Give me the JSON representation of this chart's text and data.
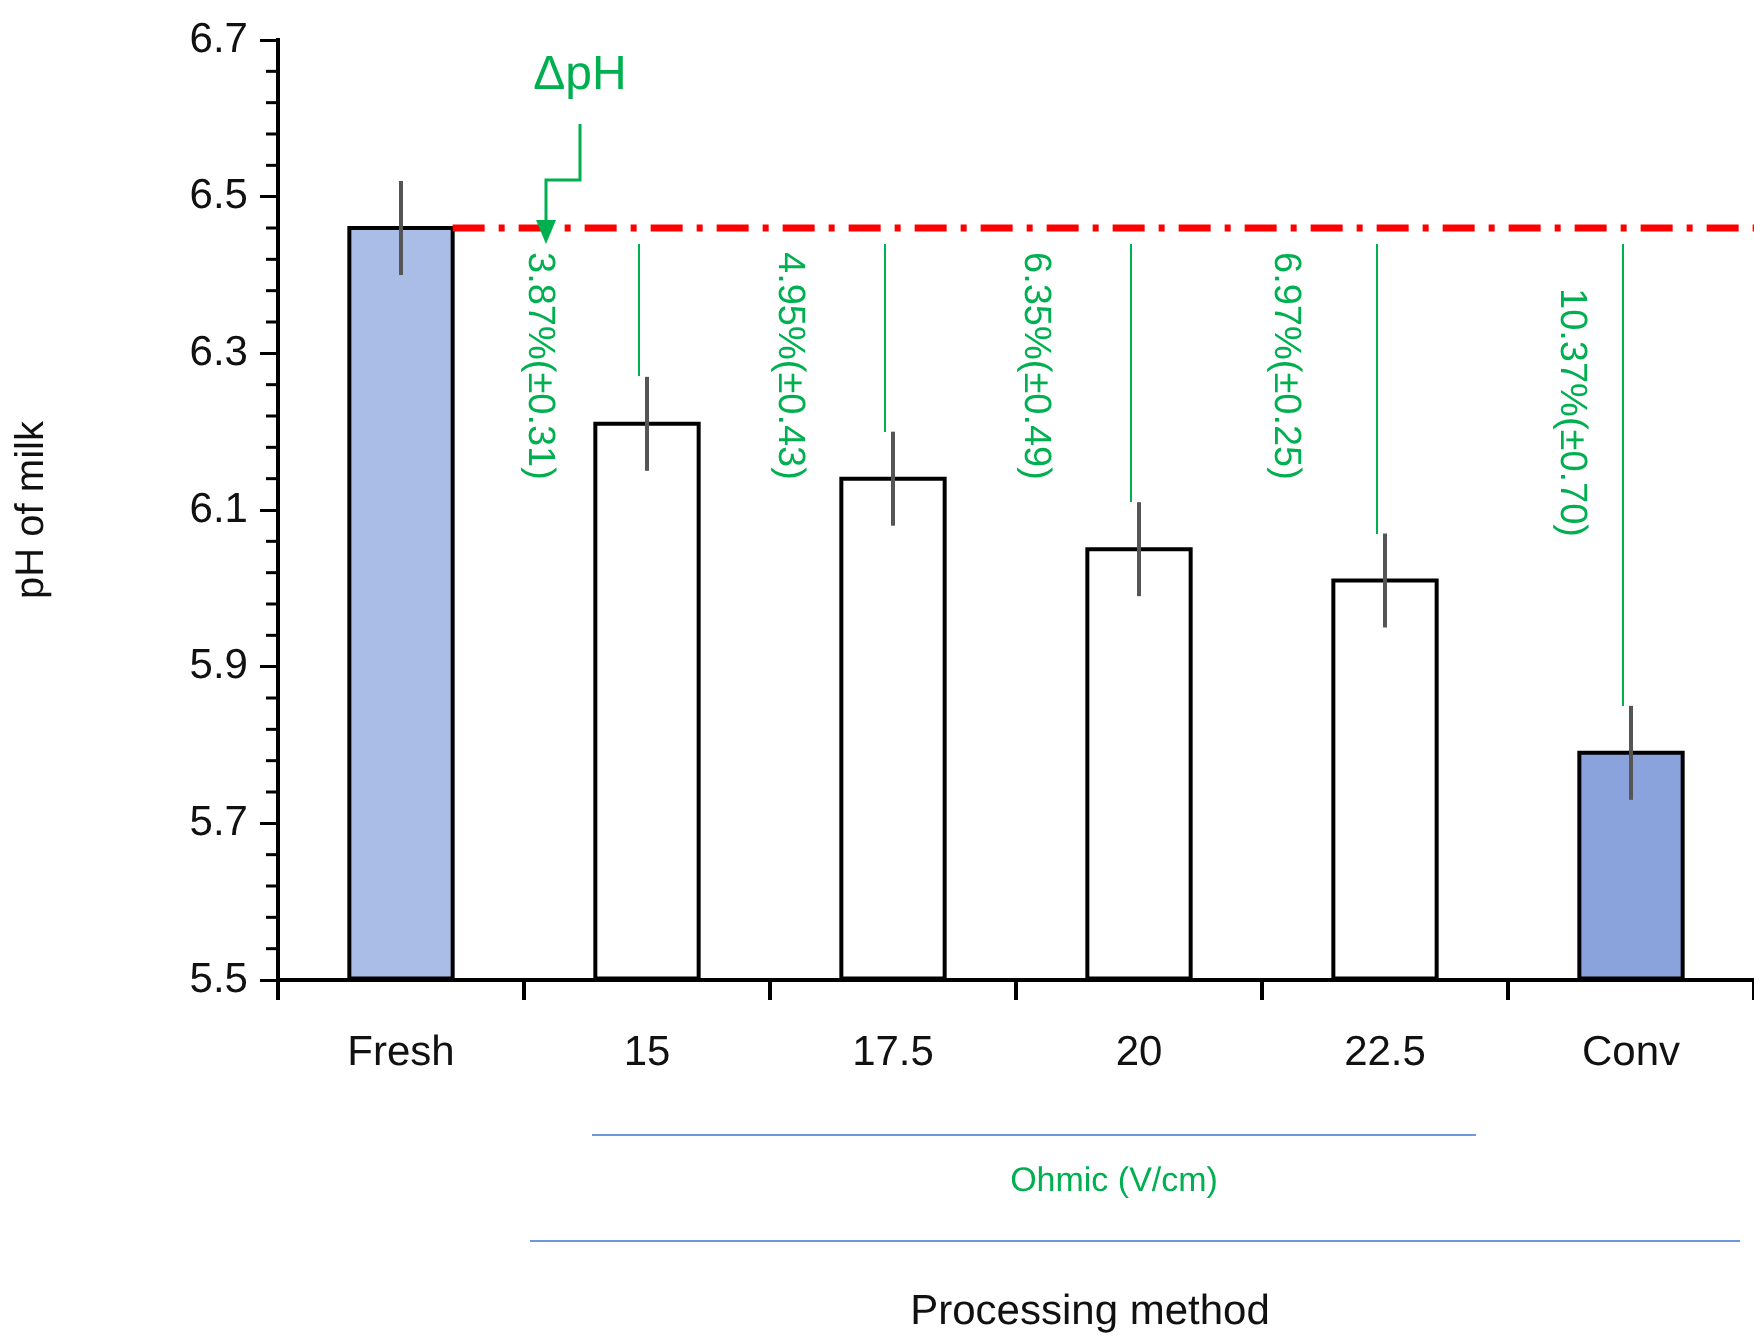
{
  "chart_data": {
    "type": "bar",
    "ylabel": "pH of milk",
    "categories": [
      "Fresh",
      "15",
      "17.5",
      "20",
      "22.5",
      "Conv"
    ],
    "values": [
      6.46,
      6.21,
      6.14,
      6.05,
      6.01,
      5.79
    ],
    "colors": [
      "#a9bde6",
      "#ffffff",
      "#ffffff",
      "#ffffff",
      "#ffffff",
      "#8aa3dc"
    ],
    "errors": [
      0.06,
      0.06,
      0.06,
      0.06,
      0.06,
      0.06
    ],
    "ylim": [
      5.5,
      6.7
    ],
    "yticks": [
      5.5,
      5.7,
      5.9,
      6.1,
      6.3,
      6.5,
      6.7
    ],
    "ref_lines": [
      {
        "axis": "y",
        "value": 6.46,
        "color": "#ff0000",
        "line_style": "dashed"
      }
    ],
    "annotations": [
      {
        "text": "ΔpH",
        "y": 6.46
      },
      {
        "text": "3.87%(±0.31)",
        "x": "15",
        "y": 6.46
      },
      {
        "text": "4.95%(±0.43)",
        "x": "17.5",
        "y": 6.46
      },
      {
        "text": "6.35%(±0.49)",
        "x": "20",
        "y": 6.46
      },
      {
        "text": "6.97%(±0.25)",
        "x": "22.5",
        "y": 6.46
      },
      {
        "text": "10.37%(±0.70)",
        "x": "Conv",
        "y": 6.46
      },
      "Ohmic (V/cm)",
      "Processing method"
    ],
    "grid": false,
    "legend": false
  }
}
